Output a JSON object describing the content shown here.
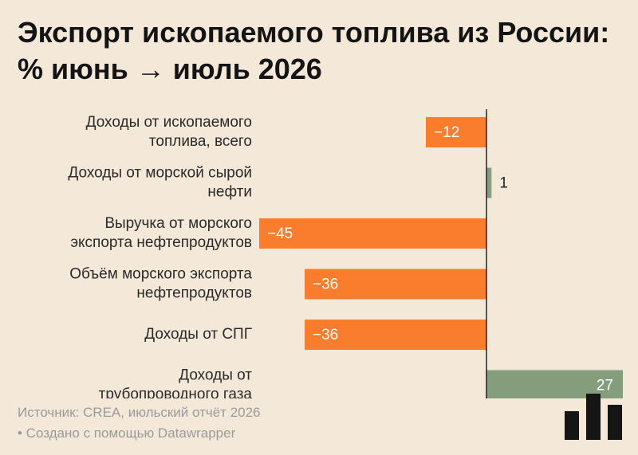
{
  "title": "Экспорт ископаемого топлива из России: % июнь → июль 2026",
  "chart_data": {
    "type": "bar",
    "orientation": "horizontal",
    "categories": [
      [
        "Доходы от ископаемого",
        "топлива, всего"
      ],
      [
        "Доходы от морской сырой",
        "нефти"
      ],
      [
        "Выручка от морского",
        "экспорта нефтепродуктов"
      ],
      [
        "Объём морского экспорта",
        "нефтепродуктов"
      ],
      [
        "Доходы от СПГ"
      ],
      [
        "Доходы от",
        "трубопроводного газа"
      ]
    ],
    "values": [
      -12,
      1,
      -45,
      -36,
      -36,
      27
    ],
    "value_labels": [
      "−12",
      "1",
      "−45",
      "−36",
      "−36",
      "27"
    ],
    "xlim": [
      -45,
      27
    ],
    "colors": {
      "negative": "#fa7d2d",
      "positive": "#849d7c",
      "axis": "#222222"
    }
  },
  "footer": {
    "source": "Источник: CREA, июльский отчёт 2026",
    "credit": "• Создано с помощью Datawrapper"
  }
}
